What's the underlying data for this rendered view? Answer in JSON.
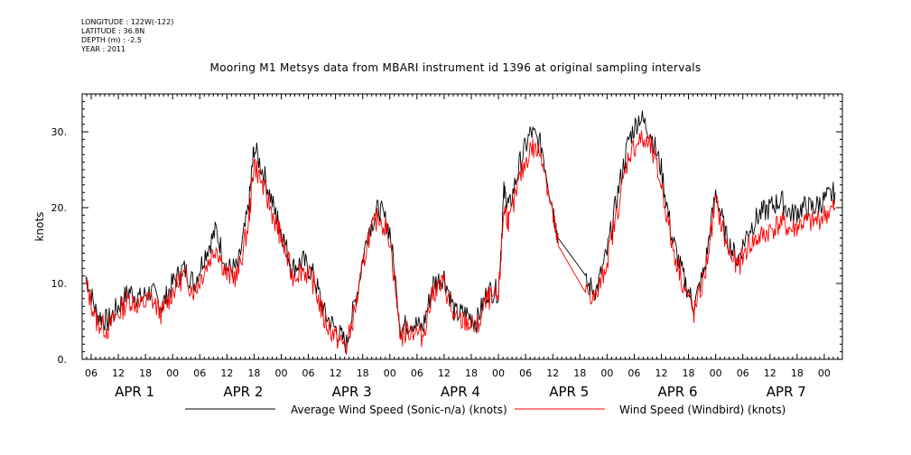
{
  "header": {
    "longitude": "LONGITUDE : 122W(-122)",
    "latitude": "LATITUDE : 36.8N",
    "depth": "DEPTH (m) : -2.5",
    "year": "YEAR : 2011"
  },
  "chart_data": {
    "type": "line",
    "title": "Mooring M1 Metsys data from MBARI instrument id 1396 at original sampling intervals",
    "ylabel": "knots",
    "xlabel": "",
    "ylim": [
      0,
      35
    ],
    "xlim_days": [
      0.167,
      7.167
    ],
    "yticks": [
      "0.",
      "10.",
      "20.",
      "30."
    ],
    "yticks_values": [
      0,
      10,
      20,
      30
    ],
    "hour_labels": [
      "06",
      "12",
      "18",
      "00",
      "06",
      "12",
      "18",
      "00",
      "06",
      "12",
      "18",
      "00",
      "06",
      "12",
      "18",
      "00",
      "06",
      "12",
      "18",
      "00",
      "06",
      "12",
      "18",
      "00",
      "06",
      "12",
      "18",
      "00"
    ],
    "day_labels": [
      "APR 1",
      "APR 2",
      "APR 3",
      "APR 4",
      "APR 5",
      "APR 6",
      "APR 7"
    ],
    "grid": false,
    "legend_position": "bottom",
    "colors": {
      "sonic": "#000000",
      "windbird": "#ff0000",
      "axis": "#000000"
    },
    "series": [
      {
        "name": "Average Wind Speed (Sonic-n/a) (knots)",
        "x": [
          0.2,
          0.3,
          0.4,
          0.5,
          0.6,
          0.7,
          0.8,
          0.9,
          1.0,
          1.1,
          1.2,
          1.3,
          1.4,
          1.5,
          1.6,
          1.7,
          1.75,
          1.85,
          1.95,
          2.0,
          2.1,
          2.2,
          2.3,
          2.4,
          2.5,
          2.6,
          2.7,
          2.8,
          2.9,
          3.0,
          3.1,
          3.2,
          3.3,
          3.4,
          3.5,
          3.6,
          3.7,
          3.8,
          3.9,
          4.0,
          4.05,
          4.1,
          4.2,
          4.3,
          4.4,
          4.5,
          4.55,
          4.8,
          4.9,
          5.0,
          5.1,
          5.2,
          5.3,
          5.4,
          5.5,
          5.6,
          5.7,
          5.8,
          5.9,
          6.0,
          6.1,
          6.2,
          6.3,
          6.4,
          6.5,
          6.6,
          6.7,
          6.8,
          6.9,
          7.0,
          7.1
        ],
        "y": [
          11,
          6,
          5,
          7,
          9,
          8,
          9,
          7,
          10,
          12,
          10,
          14,
          17,
          12,
          12,
          20,
          28,
          24,
          19,
          17,
          12,
          13,
          11,
          6,
          4,
          2,
          9,
          17,
          20,
          17,
          4,
          5,
          4,
          10,
          11,
          6,
          6,
          5,
          9,
          9,
          22,
          20,
          26,
          30,
          28,
          20,
          16,
          10,
          9,
          14,
          22,
          29,
          32,
          30,
          25,
          16,
          11,
          7,
          12,
          22,
          16,
          13,
          17,
          19,
          20,
          21,
          19,
          20,
          20,
          21,
          22
        ]
      },
      {
        "name": "Wind Speed (Windbird) (knots)",
        "x": [
          0.2,
          0.3,
          0.4,
          0.5,
          0.6,
          0.7,
          0.8,
          0.9,
          1.0,
          1.1,
          1.2,
          1.3,
          1.4,
          1.5,
          1.6,
          1.7,
          1.75,
          1.85,
          1.95,
          2.0,
          2.1,
          2.2,
          2.3,
          2.4,
          2.5,
          2.6,
          2.7,
          2.8,
          2.9,
          3.0,
          3.1,
          3.2,
          3.3,
          3.4,
          3.5,
          3.6,
          3.7,
          3.8,
          3.9,
          4.0,
          4.05,
          4.1,
          4.2,
          4.3,
          4.4,
          4.5,
          4.55,
          4.8,
          4.9,
          5.0,
          5.1,
          5.2,
          5.3,
          5.4,
          5.5,
          5.6,
          5.7,
          5.8,
          5.9,
          6.0,
          6.1,
          6.2,
          6.3,
          6.4,
          6.5,
          6.6,
          6.7,
          6.8,
          6.9,
          7.0,
          7.1
        ],
        "y": [
          10,
          5,
          4,
          6,
          8,
          7,
          8,
          6,
          9,
          11,
          9,
          12,
          15,
          11,
          11,
          18,
          26,
          22,
          18,
          16,
          11,
          12,
          10,
          5,
          3,
          1.5,
          8,
          16,
          19,
          16,
          3,
          4,
          3,
          9,
          10,
          5,
          5,
          4,
          8,
          8,
          20,
          18,
          24,
          28,
          27,
          19,
          15,
          9,
          8,
          13,
          20,
          27,
          29,
          28,
          23,
          15,
          10,
          6,
          11,
          21,
          15,
          12,
          15,
          16,
          17,
          18,
          17,
          18,
          18,
          19,
          20
        ]
      }
    ]
  }
}
